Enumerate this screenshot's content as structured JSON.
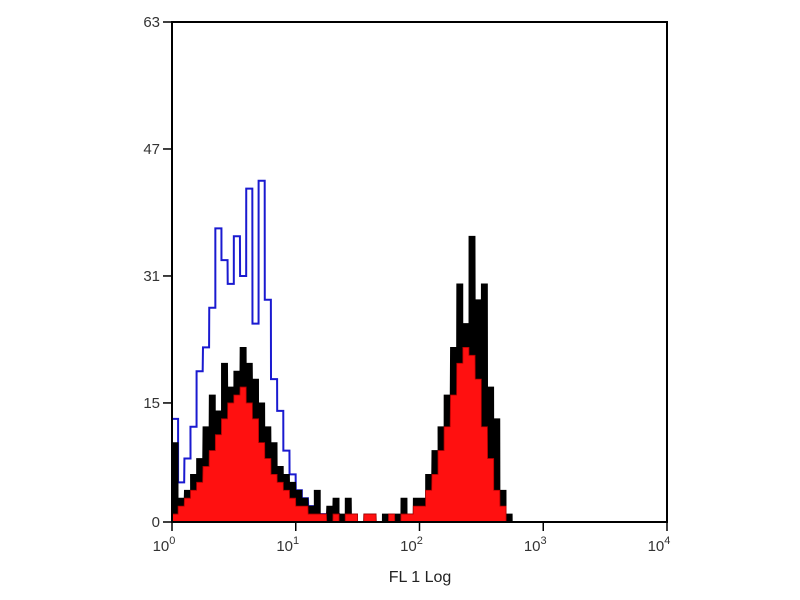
{
  "chart_data": {
    "type": "area",
    "title": "",
    "xlabel": "FL 1 Log",
    "ylabel": "",
    "xscale": "log",
    "xlim": [
      1,
      10000
    ],
    "ylim": [
      0,
      63
    ],
    "grid": false,
    "x_ticks": [
      {
        "base": "10",
        "exp": "0",
        "value": 1
      },
      {
        "base": "10",
        "exp": "1",
        "value": 10
      },
      {
        "base": "10",
        "exp": "2",
        "value": 100
      },
      {
        "base": "10",
        "exp": "3",
        "value": 1000
      },
      {
        "base": "10",
        "exp": "4",
        "value": 10000
      }
    ],
    "y_ticks": [
      "0",
      "15",
      "31",
      "47",
      "63"
    ],
    "x": [
      1,
      1.12,
      1.26,
      1.41,
      1.58,
      1.78,
      2,
      2.24,
      2.51,
      2.82,
      3.16,
      3.55,
      3.98,
      4.47,
      5.01,
      5.62,
      6.31,
      7.08,
      7.94,
      8.91,
      10,
      11.2,
      12.6,
      14.1,
      15.8,
      17.8,
      20,
      22.4,
      25.1,
      28.2,
      31.6,
      35.5,
      39.8,
      44.7,
      50.1,
      56.2,
      63.1,
      70.8,
      79.4,
      89.1,
      100,
      112,
      126,
      141,
      158,
      178,
      200,
      224,
      251,
      282,
      316,
      355,
      398,
      447,
      501,
      562,
      631
    ],
    "series": [
      {
        "color": "#1a1ad0",
        "style": "outline",
        "values": [
          13,
          5,
          8,
          12,
          19,
          22,
          27,
          37,
          33,
          30,
          36,
          31,
          42,
          25,
          43,
          28,
          18,
          14,
          9,
          6,
          4,
          3,
          2,
          1,
          1,
          0,
          1,
          0,
          0,
          0,
          0,
          0,
          0,
          0,
          0,
          0,
          0,
          0,
          0,
          0,
          0,
          0,
          0,
          0,
          0,
          0,
          0,
          0,
          0,
          0,
          0,
          0,
          0,
          0,
          0,
          0,
          0
        ]
      },
      {
        "color": "#000000",
        "style": "filled",
        "values": [
          10,
          3,
          4,
          6,
          8,
          12,
          16,
          14,
          20,
          17,
          19,
          22,
          20,
          18,
          15,
          12,
          10,
          7,
          6,
          5,
          4,
          3,
          2,
          4,
          1,
          2,
          3,
          1,
          3,
          1,
          0,
          1,
          1,
          0,
          1,
          1,
          1,
          3,
          1,
          3,
          3,
          6,
          9,
          12,
          16,
          22,
          30,
          25,
          36,
          28,
          30,
          17,
          13,
          4,
          1,
          0,
          0
        ]
      },
      {
        "color": "#ff1010",
        "style": "filled",
        "values": [
          1,
          2,
          3,
          4,
          5,
          7,
          9,
          11,
          13,
          15,
          16,
          17,
          15,
          13,
          10,
          8,
          6,
          5,
          4,
          3,
          2,
          2,
          1,
          1,
          1,
          0,
          1,
          0,
          1,
          1,
          0,
          1,
          1,
          0,
          0,
          1,
          0,
          1,
          1,
          2,
          2,
          4,
          6,
          9,
          12,
          16,
          20,
          22,
          21,
          18,
          12,
          8,
          4,
          2,
          0,
          0,
          0
        ]
      }
    ]
  }
}
